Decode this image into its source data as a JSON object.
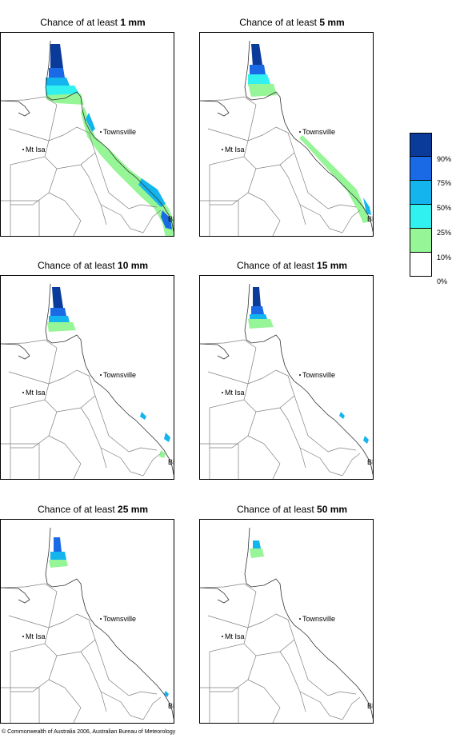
{
  "panels": [
    {
      "title_prefix": "Chance of at least ",
      "threshold": "1 mm",
      "townsville": "Townsville",
      "mtisa": "Mt Isa",
      "bris": "BRIS"
    },
    {
      "title_prefix": "Chance of at least ",
      "threshold": "5 mm",
      "townsville": "Townsville",
      "mtisa": "Mt Isa",
      "bris": "BRIS"
    },
    {
      "title_prefix": "Chance of at least ",
      "threshold": "10 mm",
      "townsville": "Townsville",
      "mtisa": "Mt Isa",
      "bris": "BRIS"
    },
    {
      "title_prefix": "Chance of at least ",
      "threshold": "15 mm",
      "townsville": "Townsville",
      "mtisa": "Mt Isa",
      "bris": "BRIS"
    },
    {
      "title_prefix": "Chance of at least ",
      "threshold": "25 mm",
      "townsville": "Townsville",
      "mtisa": "Mt Isa",
      "bris": "BRIS"
    },
    {
      "title_prefix": "Chance of at least ",
      "threshold": "50 mm",
      "townsville": "Townsville",
      "mtisa": "Mt Isa",
      "bris": "BRIS"
    }
  ],
  "legend": {
    "colors": [
      "#0a3a9a",
      "#1a6ae6",
      "#14b4ee",
      "#30f0f0",
      "#96f596",
      "#ffffff"
    ],
    "labels": [
      "90%",
      "75%",
      "50%",
      "25%",
      "10%",
      "0%"
    ]
  },
  "copyright": "© Commonwealth of Australia 2006, Australian Bureau of Meteorology"
}
